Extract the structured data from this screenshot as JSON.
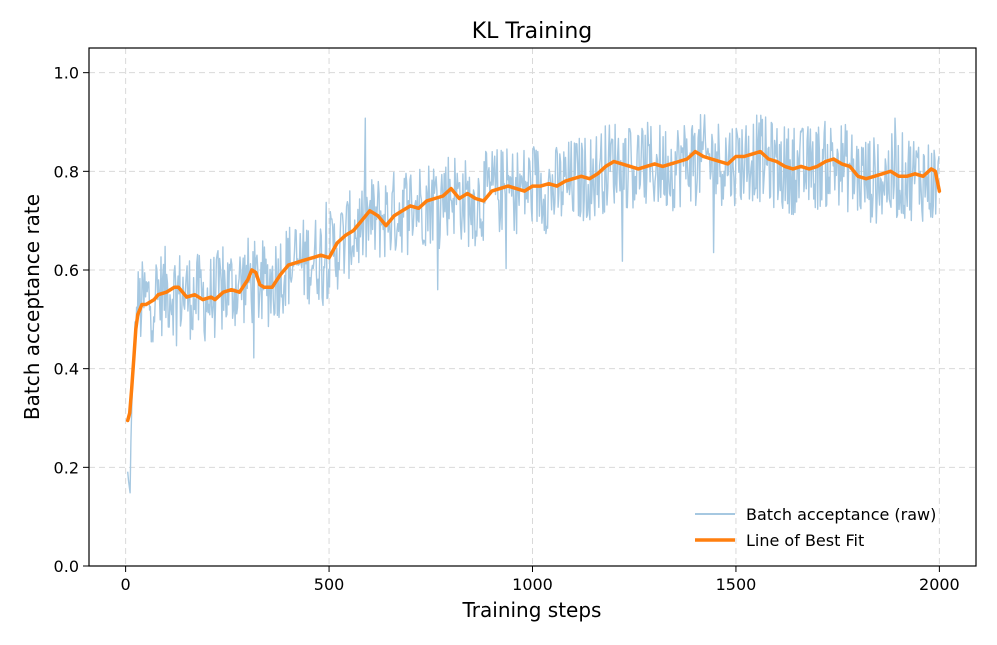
{
  "chart_data": {
    "type": "line",
    "title": "KL Training",
    "xlabel": "Training steps",
    "ylabel": "Batch acceptance rate",
    "xlim": [
      -90,
      2090
    ],
    "ylim": [
      0.0,
      1.05
    ],
    "xticks": [
      0,
      500,
      1000,
      1500,
      2000
    ],
    "yticks": [
      0.0,
      0.2,
      0.4,
      0.6,
      0.8,
      1.0
    ],
    "xtick_labels": [
      "0",
      "500",
      "1000",
      "1500",
      "2000"
    ],
    "ytick_labels": [
      "0.0",
      "0.2",
      "0.4",
      "0.6",
      "0.8",
      "1.0"
    ],
    "grid": true,
    "legend_position": "bottom-right",
    "colors": {
      "raw": "#a6c8e1",
      "fit": "#ff7f0e"
    },
    "raw_noise_amplitude": 0.09,
    "raw_sample_every": 2,
    "series": [
      {
        "name": "Batch acceptance (raw)",
        "style": "thin-line",
        "x": [
          5,
          10,
          15,
          20,
          25,
          30,
          40,
          50,
          60,
          100,
          150,
          200,
          250,
          280,
          300,
          320,
          350,
          400,
          450,
          500,
          550,
          600,
          650,
          700,
          750,
          800,
          850,
          900,
          950,
          1000,
          1050,
          1100,
          1150,
          1200,
          1250,
          1300,
          1350,
          1400,
          1450,
          1500,
          1550,
          1600,
          1650,
          1700,
          1750,
          1800,
          1850,
          1900,
          1950,
          2000
        ],
        "values": [
          0.18,
          0.14,
          0.3,
          0.42,
          0.5,
          0.52,
          0.53,
          0.54,
          0.54,
          0.56,
          0.55,
          0.54,
          0.56,
          0.57,
          0.58,
          0.57,
          0.57,
          0.61,
          0.62,
          0.63,
          0.67,
          0.7,
          0.71,
          0.73,
          0.74,
          0.76,
          0.73,
          0.76,
          0.76,
          0.77,
          0.76,
          0.78,
          0.79,
          0.82,
          0.81,
          0.81,
          0.81,
          0.83,
          0.82,
          0.82,
          0.83,
          0.81,
          0.8,
          0.81,
          0.82,
          0.79,
          0.78,
          0.79,
          0.79,
          0.77
        ]
      },
      {
        "name": "Line of Best Fit",
        "style": "thick-line",
        "x": [
          5,
          10,
          15,
          20,
          25,
          30,
          35,
          40,
          50,
          60,
          70,
          80,
          100,
          120,
          130,
          150,
          170,
          190,
          210,
          220,
          240,
          260,
          280,
          300,
          310,
          320,
          330,
          340,
          360,
          380,
          400,
          420,
          440,
          460,
          480,
          500,
          520,
          540,
          560,
          580,
          600,
          620,
          640,
          660,
          680,
          700,
          720,
          740,
          760,
          780,
          800,
          820,
          840,
          860,
          880,
          900,
          920,
          940,
          960,
          980,
          1000,
          1020,
          1040,
          1060,
          1080,
          1100,
          1120,
          1140,
          1160,
          1180,
          1200,
          1220,
          1240,
          1260,
          1280,
          1300,
          1320,
          1340,
          1360,
          1380,
          1400,
          1420,
          1440,
          1460,
          1480,
          1500,
          1520,
          1540,
          1560,
          1580,
          1600,
          1620,
          1640,
          1660,
          1680,
          1700,
          1720,
          1740,
          1760,
          1780,
          1800,
          1820,
          1840,
          1860,
          1880,
          1900,
          1920,
          1940,
          1960,
          1980,
          1990,
          2000
        ],
        "values": [
          0.295,
          0.31,
          0.36,
          0.42,
          0.48,
          0.51,
          0.52,
          0.53,
          0.53,
          0.535,
          0.54,
          0.55,
          0.555,
          0.565,
          0.565,
          0.545,
          0.55,
          0.54,
          0.545,
          0.54,
          0.555,
          0.56,
          0.555,
          0.58,
          0.6,
          0.595,
          0.57,
          0.565,
          0.565,
          0.59,
          0.61,
          0.615,
          0.62,
          0.625,
          0.63,
          0.625,
          0.655,
          0.67,
          0.68,
          0.7,
          0.72,
          0.71,
          0.69,
          0.71,
          0.72,
          0.73,
          0.725,
          0.74,
          0.745,
          0.75,
          0.765,
          0.745,
          0.755,
          0.745,
          0.74,
          0.76,
          0.765,
          0.77,
          0.765,
          0.76,
          0.77,
          0.77,
          0.775,
          0.77,
          0.78,
          0.785,
          0.79,
          0.785,
          0.795,
          0.81,
          0.82,
          0.815,
          0.81,
          0.805,
          0.81,
          0.815,
          0.81,
          0.815,
          0.82,
          0.825,
          0.84,
          0.83,
          0.825,
          0.82,
          0.815,
          0.83,
          0.83,
          0.835,
          0.84,
          0.825,
          0.82,
          0.81,
          0.805,
          0.81,
          0.805,
          0.81,
          0.82,
          0.825,
          0.815,
          0.81,
          0.79,
          0.785,
          0.79,
          0.795,
          0.8,
          0.79,
          0.79,
          0.795,
          0.79,
          0.805,
          0.8,
          0.76
        ]
      }
    ]
  }
}
